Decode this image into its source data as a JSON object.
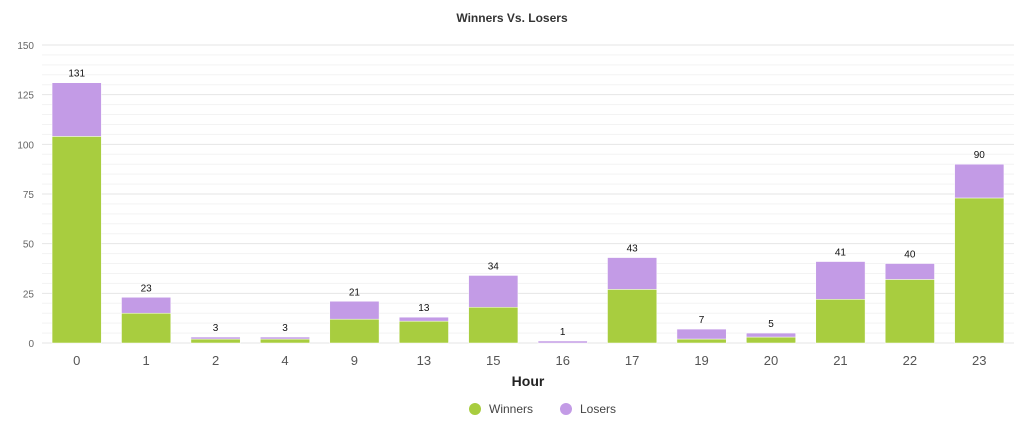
{
  "chart_data": {
    "type": "bar",
    "stacked": true,
    "title": "Winners Vs. Losers",
    "xlabel": "Hour",
    "ylabel": "",
    "ylim": [
      0,
      150
    ],
    "yticks": [
      0,
      25,
      50,
      75,
      100,
      125,
      150
    ],
    "grid": true,
    "legend_position": "bottom-center",
    "categories": [
      "0",
      "1",
      "2",
      "4",
      "9",
      "13",
      "15",
      "16",
      "17",
      "19",
      "20",
      "21",
      "22",
      "23"
    ],
    "series": [
      {
        "name": "Winners",
        "color": "#a8cd3f",
        "values": [
          104,
          15,
          2,
          2,
          12,
          11,
          18,
          0,
          27,
          2,
          3,
          22,
          32,
          73
        ]
      },
      {
        "name": "Losers",
        "color": "#c39be6",
        "values": [
          27,
          8,
          1,
          1,
          9,
          2,
          16,
          1,
          16,
          5,
          2,
          19,
          8,
          17
        ]
      }
    ],
    "totals": [
      131,
      23,
      3,
      3,
      21,
      13,
      34,
      1,
      43,
      7,
      5,
      41,
      40,
      90
    ]
  }
}
